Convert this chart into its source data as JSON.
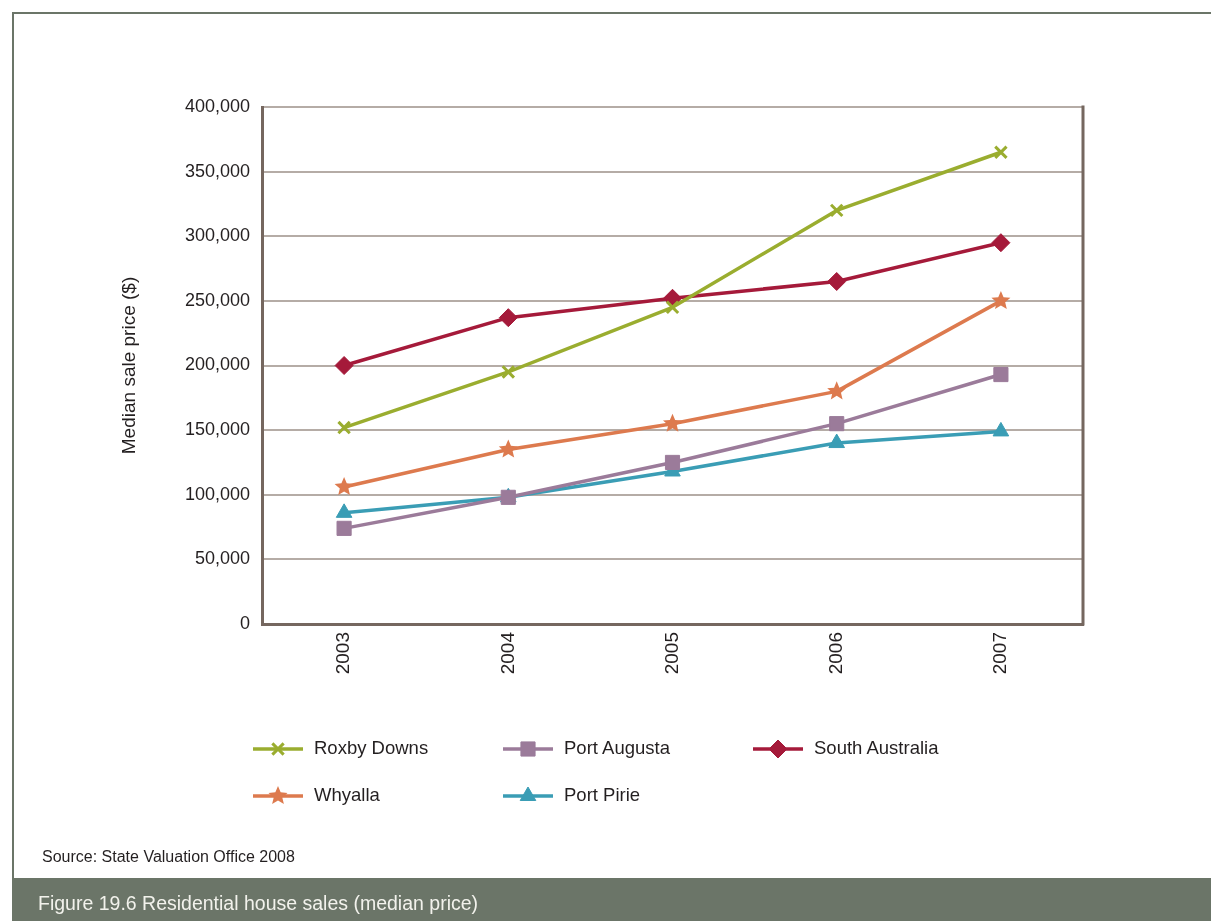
{
  "chart_data": {
    "type": "line",
    "title": "Figure 19.6 Residential house sales (median price)",
    "ylabel": "Median sale price ($)",
    "annotations": [
      "Source: State Valuation Office 2008"
    ],
    "categories": [
      "2003",
      "2004",
      "2005",
      "2006",
      "2007"
    ],
    "ylim": [
      0,
      400000
    ],
    "yticks": [
      {
        "value": 0,
        "label": "0"
      },
      {
        "value": 50000,
        "label": "50,000"
      },
      {
        "value": 100000,
        "label": "100,000"
      },
      {
        "value": 150000,
        "label": "150,000"
      },
      {
        "value": 200000,
        "label": "200,000"
      },
      {
        "value": 250000,
        "label": "250,000"
      },
      {
        "value": 300000,
        "label": "300,000"
      },
      {
        "value": 350000,
        "label": "350,000"
      },
      {
        "value": 400000,
        "label": "400,000"
      }
    ],
    "grid": "y",
    "legend": "bottom",
    "series": [
      {
        "name": "Roxby Downs",
        "color": "#9aad2f",
        "marker": "cross",
        "values": [
          152000,
          195000,
          245000,
          320000,
          365000
        ]
      },
      {
        "name": "Port Augusta",
        "color": "#9b7b9a",
        "marker": "square",
        "values": [
          74000,
          98000,
          125000,
          155000,
          193000
        ]
      },
      {
        "name": "South Australia",
        "color": "#a51a3a",
        "marker": "diamond",
        "values": [
          200000,
          237000,
          252000,
          265000,
          295000
        ]
      },
      {
        "name": "Whyalla",
        "color": "#dd7a4e",
        "marker": "star",
        "values": [
          106000,
          135000,
          155000,
          180000,
          250000
        ]
      },
      {
        "name": "Port Pirie",
        "color": "#3a9db5",
        "marker": "triangle",
        "values": [
          86000,
          98000,
          118000,
          140000,
          149000
        ]
      }
    ]
  }
}
